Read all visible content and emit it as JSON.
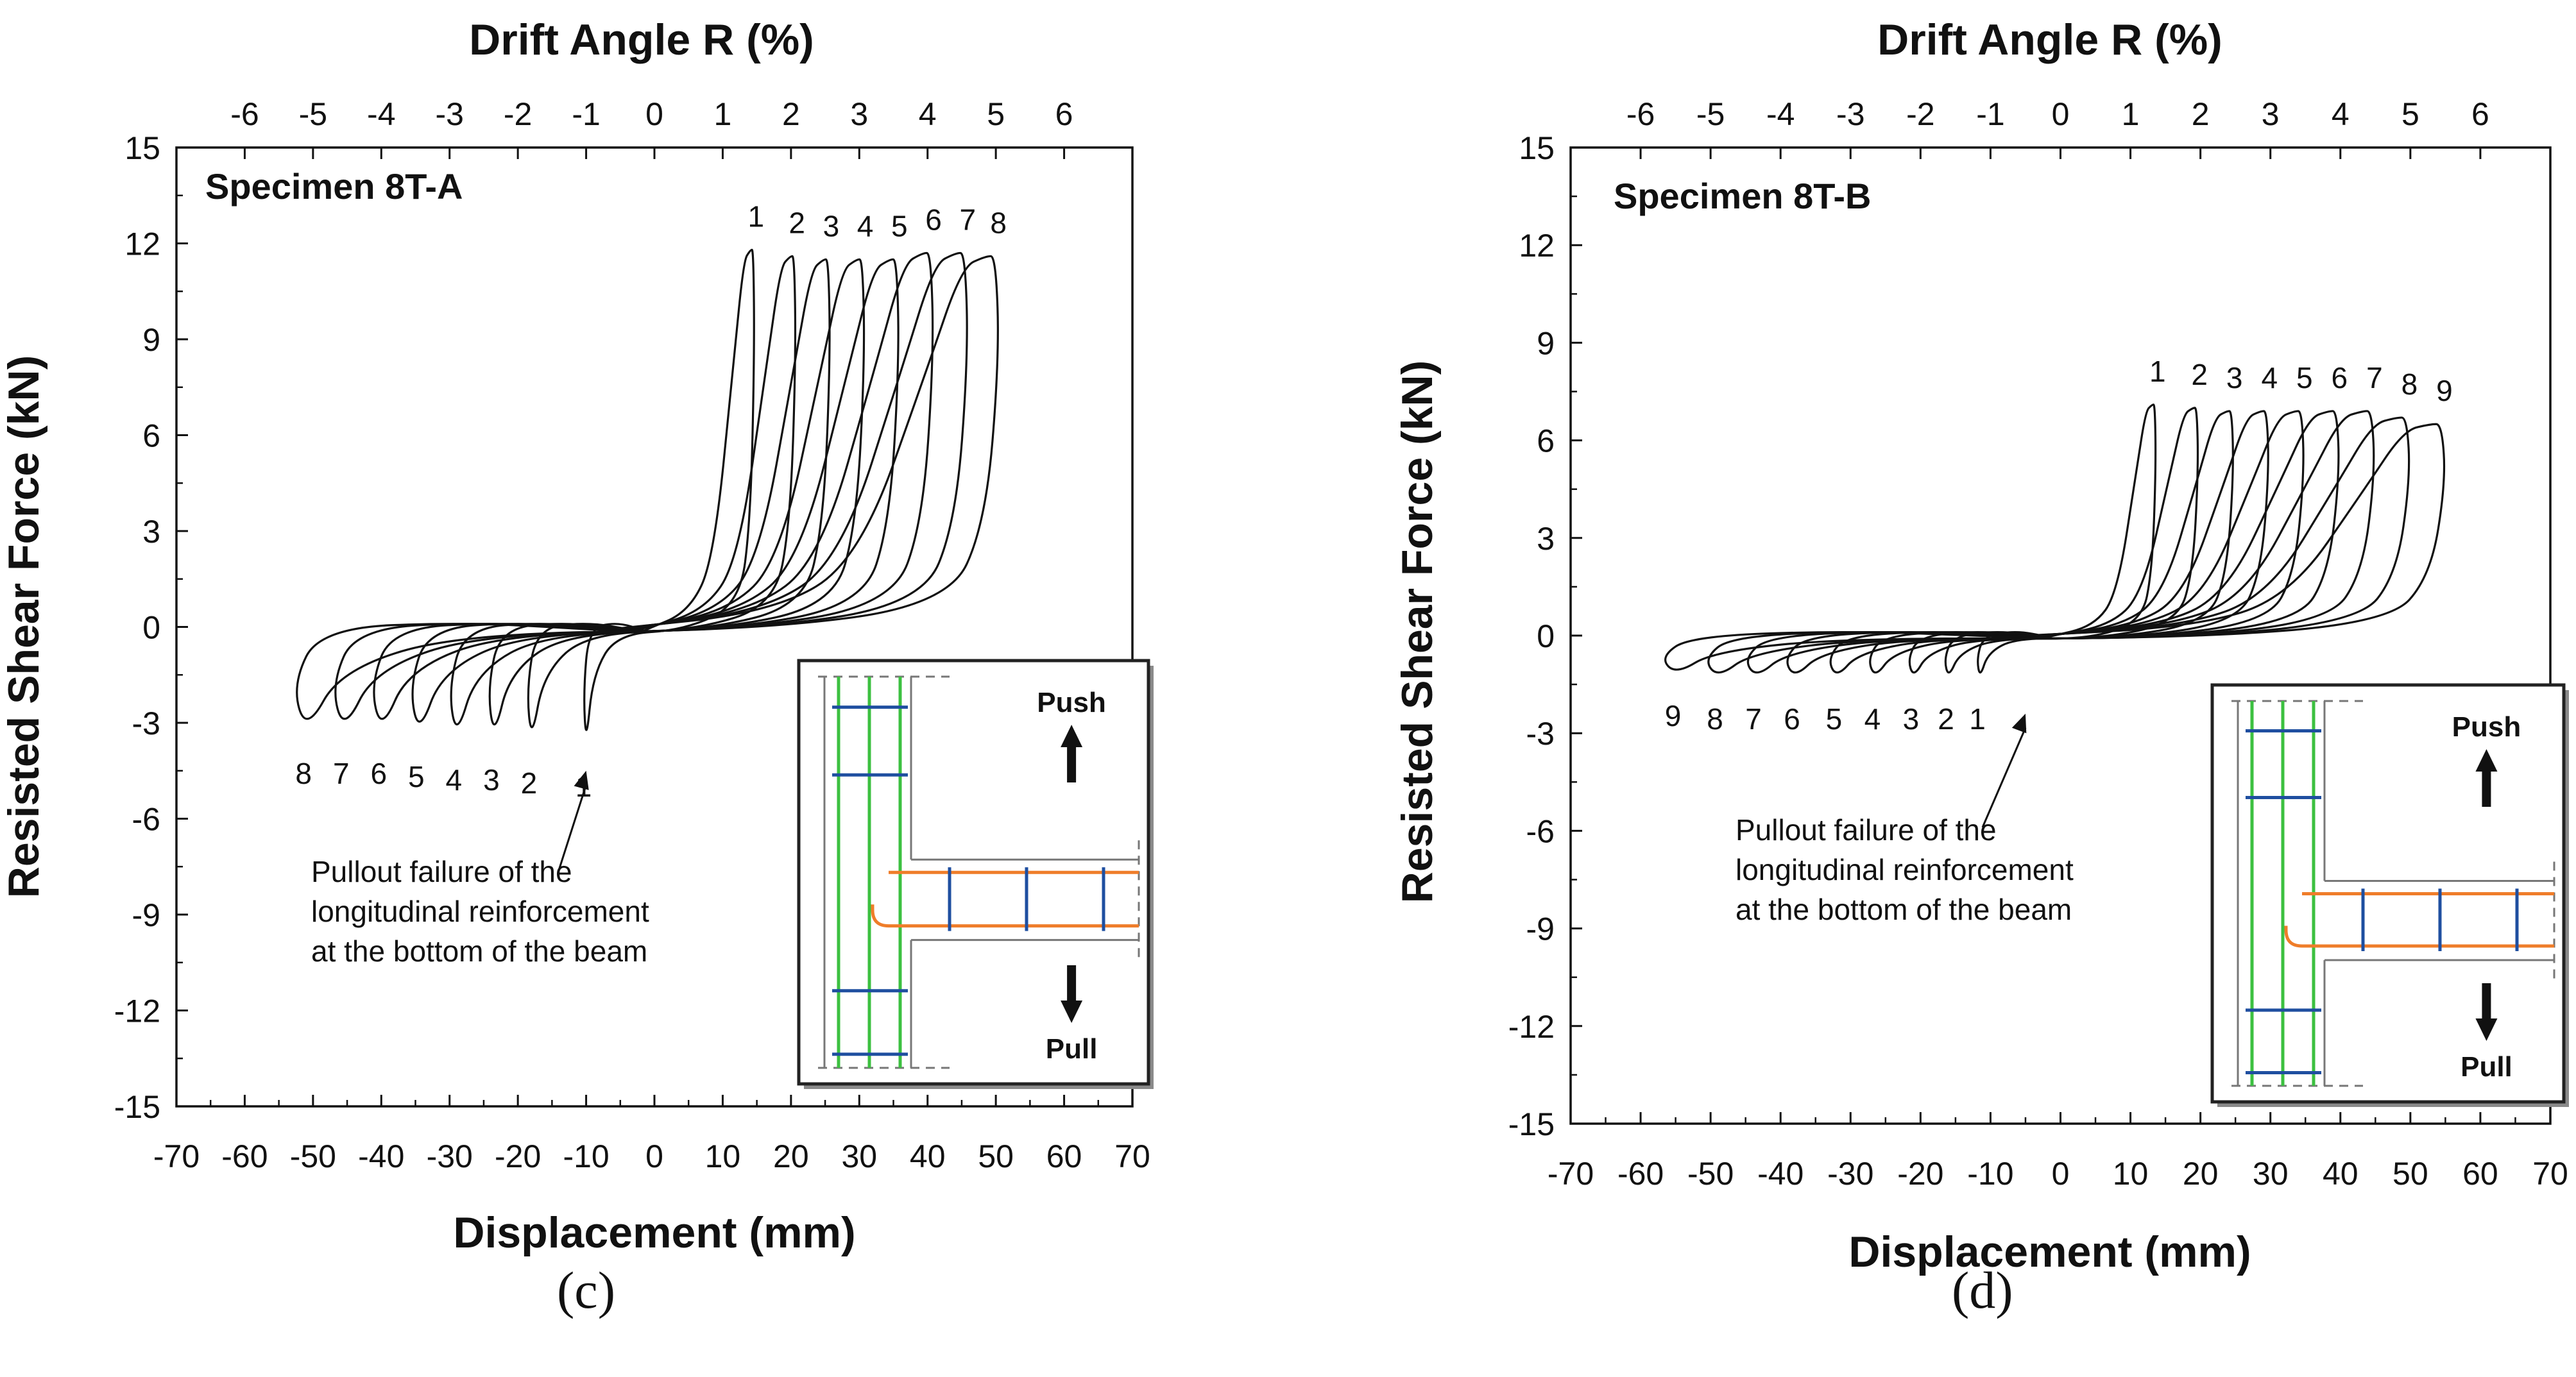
{
  "panels": {
    "c": "(c)",
    "d": "(d)"
  },
  "chart_data": [
    {
      "type": "line",
      "title": "Specimen  8T-A",
      "xlabel": "Displacement (mm)",
      "ylabel": "Resisted Shear Force (kN)",
      "x2label": "Drift Angle R (%)",
      "xlim": [
        -70,
        70
      ],
      "ylim": [
        -15,
        15
      ],
      "x_ticks": [
        -70,
        -60,
        -50,
        -40,
        -30,
        -20,
        -10,
        0,
        10,
        20,
        30,
        40,
        50,
        60,
        70
      ],
      "y_ticks": [
        -15,
        -12,
        -9,
        -6,
        -3,
        0,
        3,
        6,
        9,
        12,
        15
      ],
      "drift_ticks": [
        -6,
        -5,
        -4,
        -3,
        -2,
        -1,
        0,
        1,
        2,
        3,
        4,
        5,
        6
      ],
      "mm_per_drift_percent": 10,
      "series_description": "hysteresis loops, cycles 1-8",
      "positive_peaks": [
        {
          "cycle": "1",
          "x": 14.5,
          "y": 11.8
        },
        {
          "cycle": "2",
          "x": 20.5,
          "y": 11.6
        },
        {
          "cycle": "3",
          "x": 25.5,
          "y": 11.5
        },
        {
          "cycle": "4",
          "x": 30.5,
          "y": 11.5
        },
        {
          "cycle": "5",
          "x": 35.5,
          "y": 11.5
        },
        {
          "cycle": "6",
          "x": 40.5,
          "y": 11.7
        },
        {
          "cycle": "7",
          "x": 45.5,
          "y": 11.7
        },
        {
          "cycle": "8",
          "x": 50.0,
          "y": 11.6
        }
      ],
      "negative_peaks": [
        {
          "cycle": "1",
          "x": -10.0,
          "y": -3.7
        },
        {
          "cycle": "2",
          "x": -18.0,
          "y": -3.6
        },
        {
          "cycle": "3",
          "x": -23.5,
          "y": -3.5
        },
        {
          "cycle": "4",
          "x": -29.0,
          "y": -3.5
        },
        {
          "cycle": "5",
          "x": -34.5,
          "y": -3.4
        },
        {
          "cycle": "6",
          "x": -40.0,
          "y": -3.3
        },
        {
          "cycle": "7",
          "x": -45.5,
          "y": -3.3
        },
        {
          "cycle": "8",
          "x": -51.0,
          "y": -3.3
        }
      ],
      "annotation": [
        "Pullout failure of the",
        "longitudinal reinforcement",
        "at the bottom of the beam"
      ],
      "annotation_target": {
        "x": -10,
        "y": -4.5
      },
      "inset": {
        "push": "Push",
        "pull": "Pull"
      }
    },
    {
      "type": "line",
      "title": "Specimen  8T-B",
      "xlabel": "Displacement (mm)",
      "ylabel": "Resisted Shear Force (kN)",
      "x2label": "Drift Angle R (%)",
      "xlim": [
        -70,
        70
      ],
      "ylim": [
        -15,
        15
      ],
      "x_ticks": [
        -70,
        -60,
        -50,
        -40,
        -30,
        -20,
        -10,
        0,
        10,
        20,
        30,
        40,
        50,
        60,
        70
      ],
      "y_ticks": [
        -15,
        -12,
        -9,
        -6,
        -3,
        0,
        3,
        6,
        9,
        12,
        15
      ],
      "drift_ticks": [
        -6,
        -5,
        -4,
        -3,
        -2,
        -1,
        0,
        1,
        2,
        3,
        4,
        5,
        6
      ],
      "mm_per_drift_percent": 10,
      "series_description": "hysteresis loops, cycles 1-9",
      "positive_peaks": [
        {
          "cycle": "1",
          "x": 13.5,
          "y": 7.1
        },
        {
          "cycle": "2",
          "x": 19.5,
          "y": 7.0
        },
        {
          "cycle": "3",
          "x": 24.5,
          "y": 6.9
        },
        {
          "cycle": "4",
          "x": 29.5,
          "y": 6.9
        },
        {
          "cycle": "5",
          "x": 34.5,
          "y": 6.9
        },
        {
          "cycle": "6",
          "x": 39.5,
          "y": 6.9
        },
        {
          "cycle": "7",
          "x": 44.5,
          "y": 6.9
        },
        {
          "cycle": "8",
          "x": 49.5,
          "y": 6.7
        },
        {
          "cycle": "9",
          "x": 54.5,
          "y": 6.5
        }
      ],
      "negative_peaks": [
        {
          "cycle": "1",
          "x": -11.5,
          "y": -1.3
        },
        {
          "cycle": "2",
          "x": -16.0,
          "y": -1.3
        },
        {
          "cycle": "3",
          "x": -21.0,
          "y": -1.3
        },
        {
          "cycle": "4",
          "x": -26.5,
          "y": -1.3
        },
        {
          "cycle": "5",
          "x": -32.0,
          "y": -1.3
        },
        {
          "cycle": "6",
          "x": -38.0,
          "y": -1.3
        },
        {
          "cycle": "7",
          "x": -43.5,
          "y": -1.3
        },
        {
          "cycle": "8",
          "x": -49.0,
          "y": -1.3
        },
        {
          "cycle": "9",
          "x": -55.0,
          "y": -1.2
        }
      ],
      "annotation": [
        "Pullout failure of the",
        "longitudinal reinforcement",
        "at the bottom of the beam"
      ],
      "annotation_target": {
        "x": -5,
        "y": -2.4
      },
      "inset": {
        "push": "Push",
        "pull": "Pull"
      }
    }
  ]
}
